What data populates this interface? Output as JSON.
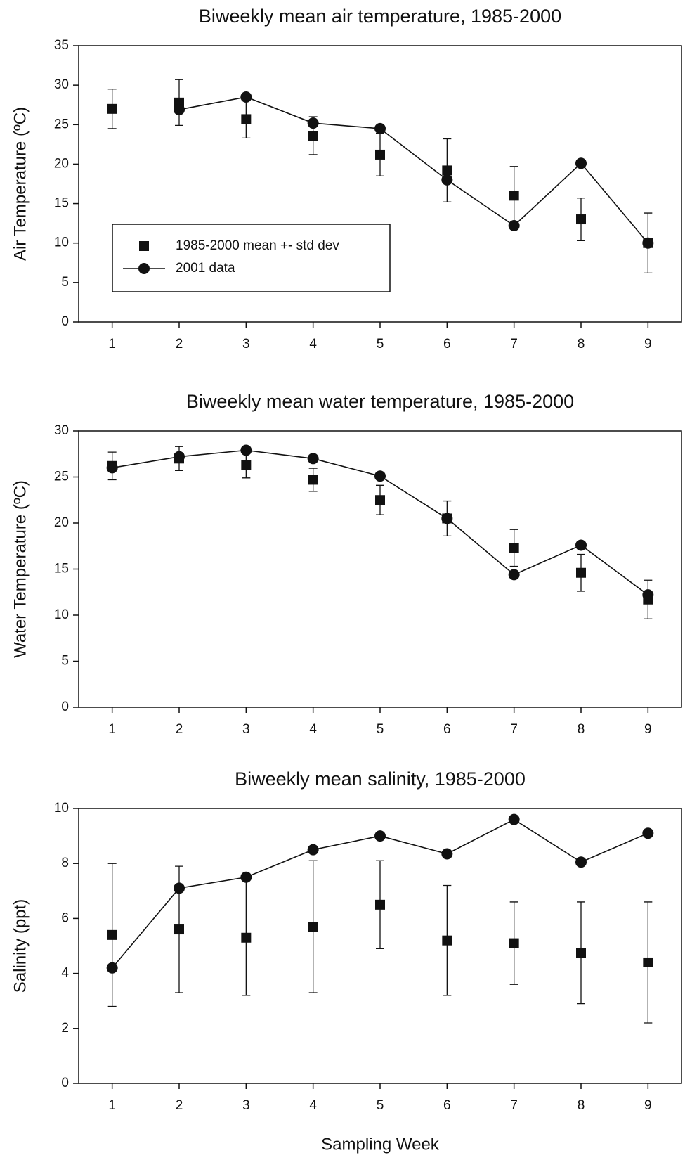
{
  "chart_data": [
    {
      "type": "line",
      "title": "Biweekly mean air temperature, 1985-2000",
      "ylabel": "Air Temperature (ºC)",
      "x": [
        1,
        2,
        3,
        4,
        5,
        6,
        7,
        8,
        9
      ],
      "xlim": [
        0.5,
        9.5
      ],
      "xticks": [
        1,
        2,
        3,
        4,
        5,
        6,
        7,
        8,
        9
      ],
      "ylim": [
        0,
        35
      ],
      "yticks": [
        0,
        5,
        10,
        15,
        20,
        25,
        30,
        35
      ],
      "legend": "center left",
      "series": [
        {
          "name": "1985-2000 mean +- std dev",
          "color": "#111111",
          "marker": "square",
          "line": false,
          "values": [
            27,
            27.8,
            25.7,
            23.6,
            21.2,
            19.2,
            16,
            13,
            10
          ],
          "errors": [
            2.5,
            2.9,
            2.4,
            2.4,
            2.7,
            4,
            3.7,
            2.7,
            3.8
          ]
        },
        {
          "name": "2001 data",
          "color": "#111111",
          "marker": "circle",
          "line": true,
          "values": [
            null,
            26.9,
            28.5,
            25.2,
            24.5,
            18,
            12.2,
            20.1,
            10
          ]
        }
      ]
    },
    {
      "type": "line",
      "title": "Biweekly mean water temperature, 1985-2000",
      "ylabel": "Water Temperature (ºC)",
      "x": [
        1,
        2,
        3,
        4,
        5,
        6,
        7,
        8,
        9
      ],
      "xlim": [
        0.5,
        9.5
      ],
      "xticks": [
        1,
        2,
        3,
        4,
        5,
        6,
        7,
        8,
        9
      ],
      "ylim": [
        0,
        30
      ],
      "yticks": [
        0,
        5,
        10,
        15,
        20,
        25,
        30
      ],
      "series": [
        {
          "color": "#111111",
          "marker": "square",
          "line": false,
          "values": [
            26.2,
            27,
            26.3,
            24.7,
            22.5,
            20.5,
            17.3,
            14.6,
            11.7
          ],
          "errors": [
            1.5,
            1.3,
            1.4,
            1.25,
            1.6,
            1.9,
            2,
            2,
            2.1
          ]
        },
        {
          "color": "#111111",
          "marker": "circle",
          "line": true,
          "values": [
            26,
            27.2,
            27.9,
            27,
            25.1,
            20.5,
            14.4,
            17.6,
            12.2
          ]
        }
      ]
    },
    {
      "type": "line",
      "title": "Biweekly mean salinity, 1985-2000",
      "ylabel": "Salinity (ppt)",
      "xlabel": "Sampling Week",
      "x": [
        1,
        2,
        3,
        4,
        5,
        6,
        7,
        8,
        9
      ],
      "xlim": [
        0.5,
        9.5
      ],
      "xticks": [
        1,
        2,
        3,
        4,
        5,
        6,
        7,
        8,
        9
      ],
      "ylim": [
        0,
        10
      ],
      "yticks": [
        0,
        2,
        4,
        6,
        8,
        10
      ],
      "series": [
        {
          "color": "#111111",
          "marker": "square",
          "line": false,
          "values": [
            5.4,
            5.6,
            5.3,
            5.7,
            6.5,
            5.2,
            5.1,
            4.75,
            4.4
          ],
          "errors": [
            2.6,
            2.3,
            2.1,
            2.4,
            1.6,
            2,
            1.5,
            1.85,
            2.2
          ]
        },
        {
          "color": "#111111",
          "marker": "circle",
          "line": true,
          "values": [
            4.2,
            7.1,
            7.5,
            8.5,
            9.0,
            8.35,
            9.6,
            8.05,
            9.1
          ]
        }
      ]
    }
  ]
}
